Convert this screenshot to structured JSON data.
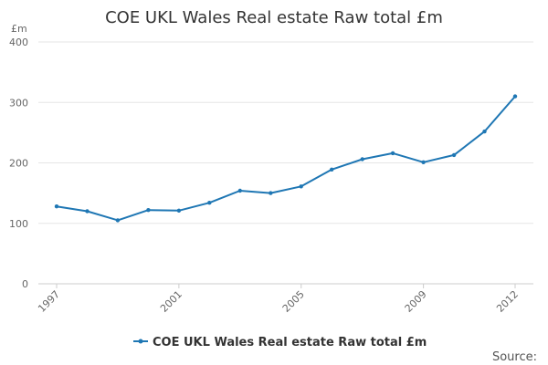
{
  "chart_data": {
    "type": "line",
    "title": "COE UKL Wales Real estate Raw total £m",
    "ylabel": "£m",
    "xlabel": "",
    "ylim": [
      0,
      400
    ],
    "yticks": [
      0,
      100,
      200,
      300,
      400
    ],
    "xlim": [
      1997,
      2012
    ],
    "xticks": [
      1997,
      2001,
      2005,
      2009,
      2012
    ],
    "grid": true,
    "legend_position": "bottom",
    "series": [
      {
        "name": "COE UKL Wales Real estate Raw total £m",
        "color": "#1f77b4",
        "x": [
          1997,
          1998,
          1999,
          2000,
          2001,
          2002,
          2003,
          2004,
          2005,
          2006,
          2007,
          2008,
          2009,
          2010,
          2011,
          2012
        ],
        "values": [
          128,
          120,
          105,
          122,
          121,
          134,
          154,
          150,
          161,
          189,
          206,
          216,
          201,
          213,
          252,
          310
        ]
      }
    ]
  },
  "footer": {
    "source_label": "Source:"
  }
}
